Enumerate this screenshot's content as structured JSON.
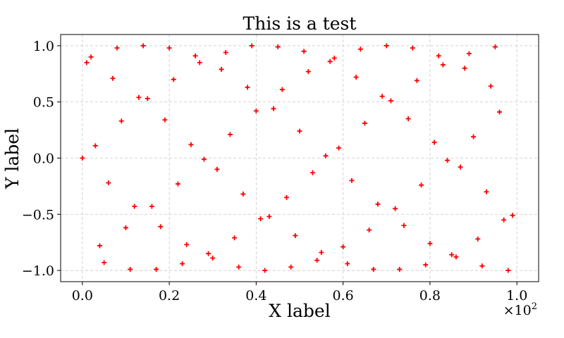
{
  "chart_data": {
    "type": "scatter",
    "title": "This is a test",
    "xlabel": "X label",
    "ylabel": "Y label",
    "x_offset_label": "×10",
    "x_offset_exponent": "2",
    "xlim": [
      -0.05,
      1.05
    ],
    "ylim": [
      -1.1,
      1.1
    ],
    "x_ticks": [
      0.0,
      0.2,
      0.4,
      0.6,
      0.8,
      1.0
    ],
    "x_tick_labels": [
      "0.0",
      "0.2",
      "0.4",
      "0.6",
      "0.8",
      "1.0"
    ],
    "y_ticks": [
      -1.0,
      -0.5,
      0.0,
      0.5,
      1.0
    ],
    "y_tick_labels": [
      "−1.0",
      "−0.5",
      "0.0",
      "0.5",
      "1.0"
    ],
    "grid": true,
    "grid_style": "dashed",
    "marker": "plus",
    "color": "#ff0000",
    "series": [
      {
        "points": [
          [
            0.0,
            0.0
          ],
          [
            0.01,
            0.85
          ],
          [
            0.02,
            0.9
          ],
          [
            0.03,
            0.11
          ],
          [
            0.04,
            -0.78
          ],
          [
            0.05,
            -0.93
          ],
          [
            0.06,
            -0.22
          ],
          [
            0.07,
            0.71
          ],
          [
            0.08,
            0.98
          ],
          [
            0.09,
            0.33
          ],
          [
            0.1,
            -0.62
          ],
          [
            0.11,
            -0.99
          ],
          [
            0.12,
            -0.43
          ],
          [
            0.13,
            0.54
          ],
          [
            0.14,
            1.0
          ],
          [
            0.15,
            0.53
          ],
          [
            0.16,
            -0.43
          ],
          [
            0.17,
            -0.99
          ],
          [
            0.18,
            -0.61
          ],
          [
            0.19,
            0.34
          ],
          [
            0.2,
            0.98
          ],
          [
            0.21,
            0.7
          ],
          [
            0.22,
            -0.23
          ],
          [
            0.23,
            -0.94
          ],
          [
            0.24,
            -0.77
          ],
          [
            0.25,
            0.12
          ],
          [
            0.26,
            0.91
          ],
          [
            0.27,
            0.85
          ],
          [
            0.28,
            -0.01
          ],
          [
            0.29,
            -0.85
          ],
          [
            0.3,
            -0.89
          ],
          [
            0.31,
            -0.1
          ],
          [
            0.32,
            0.79
          ],
          [
            0.33,
            0.94
          ],
          [
            0.34,
            0.21
          ],
          [
            0.35,
            -0.71
          ],
          [
            0.36,
            -0.97
          ],
          [
            0.37,
            -0.32
          ],
          [
            0.38,
            0.63
          ],
          [
            0.39,
            1.0
          ],
          [
            0.4,
            0.42
          ],
          [
            0.41,
            -0.54
          ],
          [
            0.42,
            -1.0
          ],
          [
            0.43,
            -0.52
          ],
          [
            0.44,
            0.44
          ],
          [
            0.45,
            0.99
          ],
          [
            0.46,
            0.61
          ],
          [
            0.47,
            -0.35
          ],
          [
            0.48,
            -0.97
          ],
          [
            0.49,
            -0.69
          ],
          [
            0.5,
            0.24
          ],
          [
            0.51,
            0.95
          ],
          [
            0.52,
            0.77
          ],
          [
            0.53,
            -0.13
          ],
          [
            0.54,
            -0.91
          ],
          [
            0.55,
            -0.84
          ],
          [
            0.56,
            0.02
          ],
          [
            0.57,
            0.86
          ],
          [
            0.58,
            0.89
          ],
          [
            0.59,
            0.09
          ],
          [
            0.6,
            -0.79
          ],
          [
            0.61,
            -0.94
          ],
          [
            0.62,
            -0.2
          ],
          [
            0.63,
            0.72
          ],
          [
            0.64,
            0.97
          ],
          [
            0.65,
            0.31
          ],
          [
            0.66,
            -0.64
          ],
          [
            0.67,
            -0.99
          ],
          [
            0.68,
            -0.41
          ],
          [
            0.69,
            0.55
          ],
          [
            0.7,
            1.0
          ],
          [
            0.71,
            0.51
          ],
          [
            0.72,
            -0.45
          ],
          [
            0.73,
            -0.99
          ],
          [
            0.74,
            -0.6
          ],
          [
            0.75,
            0.35
          ],
          [
            0.76,
            0.98
          ],
          [
            0.77,
            0.69
          ],
          [
            0.78,
            -0.24
          ],
          [
            0.79,
            -0.95
          ],
          [
            0.8,
            -0.76
          ],
          [
            0.81,
            0.14
          ],
          [
            0.82,
            0.91
          ],
          [
            0.83,
            0.83
          ],
          [
            0.84,
            -0.02
          ],
          [
            0.85,
            -0.86
          ],
          [
            0.86,
            -0.88
          ],
          [
            0.87,
            -0.08
          ],
          [
            0.88,
            0.8
          ],
          [
            0.89,
            0.93
          ],
          [
            0.9,
            0.19
          ],
          [
            0.91,
            -0.72
          ],
          [
            0.92,
            -0.96
          ],
          [
            0.93,
            -0.3
          ],
          [
            0.94,
            0.64
          ],
          [
            0.95,
            0.99
          ],
          [
            0.96,
            0.41
          ],
          [
            0.97,
            -0.55
          ],
          [
            0.98,
            -1.0
          ],
          [
            0.99,
            -0.51
          ]
        ]
      }
    ]
  }
}
